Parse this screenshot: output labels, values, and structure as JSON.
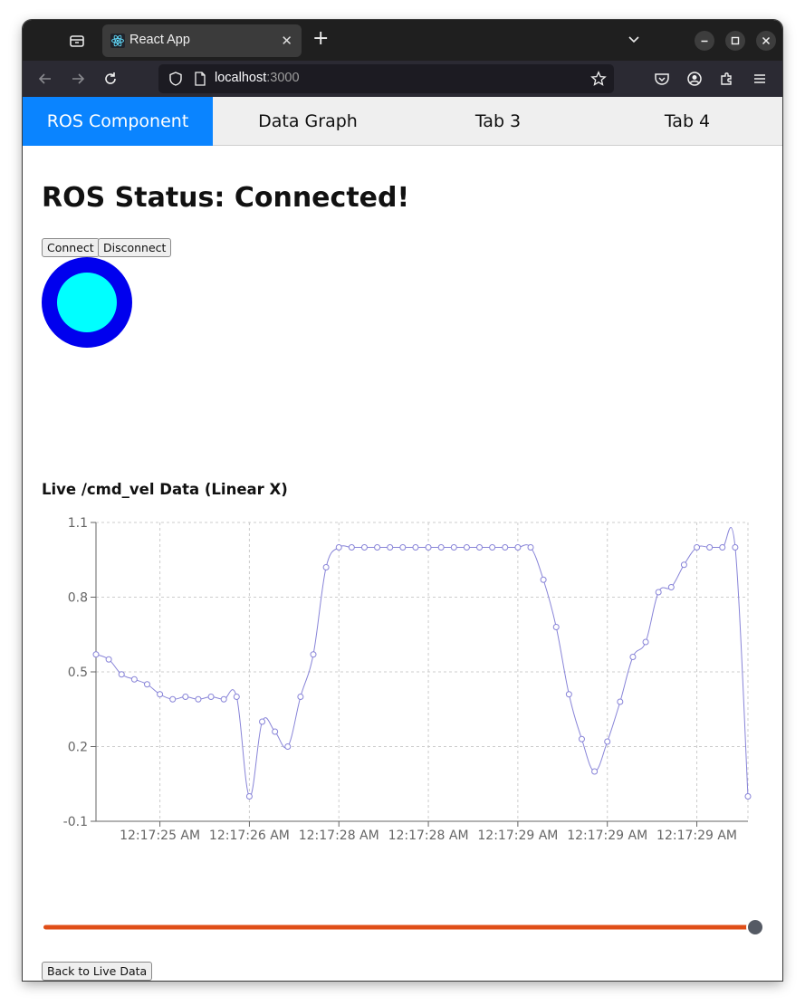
{
  "browser": {
    "tab_title": "React App",
    "url_host": "localhost",
    "url_port": ":3000"
  },
  "app_tabs": [
    {
      "label": "ROS Component",
      "active": true
    },
    {
      "label": "Data Graph",
      "active": false
    },
    {
      "label": "Tab 3",
      "active": false
    },
    {
      "label": "Tab 4",
      "active": false
    }
  ],
  "ros": {
    "status_text": "ROS Status: Connected!",
    "connect_label": "Connect",
    "disconnect_label": "Disconnect",
    "indicator_outer_color": "#0000ee",
    "indicator_inner_color": "#00ffff"
  },
  "chart_data": {
    "type": "line",
    "title": "Live /cmd_vel Data (Linear X)",
    "xlabel": "",
    "ylabel": "",
    "ylim": [
      -0.1,
      1.1
    ],
    "yticks": [
      "1.1",
      "0.8",
      "0.5",
      "0.2",
      "-0.1"
    ],
    "xticks": [
      "12:17:25 AM",
      "12:17:26 AM",
      "12:17:28 AM",
      "12:17:28 AM",
      "12:17:29 AM",
      "12:17:29 AM",
      "12:17:29 AM"
    ],
    "grid": true,
    "line_color": "#8884d8",
    "series": [
      {
        "values": [
          0.57,
          0.55,
          0.49,
          0.47,
          0.45,
          0.41,
          0.39,
          0.4,
          0.39,
          0.4,
          0.39,
          0.4,
          -0.0,
          0.3,
          0.26,
          0.2,
          0.4,
          0.57,
          0.92,
          1.0,
          1.0,
          1.0,
          1.0,
          1.0,
          1.0,
          1.0,
          1.0,
          1.0,
          1.0,
          1.0,
          1.0,
          1.0,
          1.0,
          1.0,
          1.0,
          0.87,
          0.68,
          0.41,
          0.23,
          0.1,
          0.22,
          0.38,
          0.56,
          0.62,
          0.82,
          0.84,
          0.93,
          1.0,
          1.0,
          1.0,
          1.0,
          -0.0
        ]
      }
    ]
  },
  "slider": {
    "value": 1.0,
    "track_color": "#e04e17",
    "thumb_color": "#555a64"
  },
  "back_button_label": "Back to Live Data"
}
